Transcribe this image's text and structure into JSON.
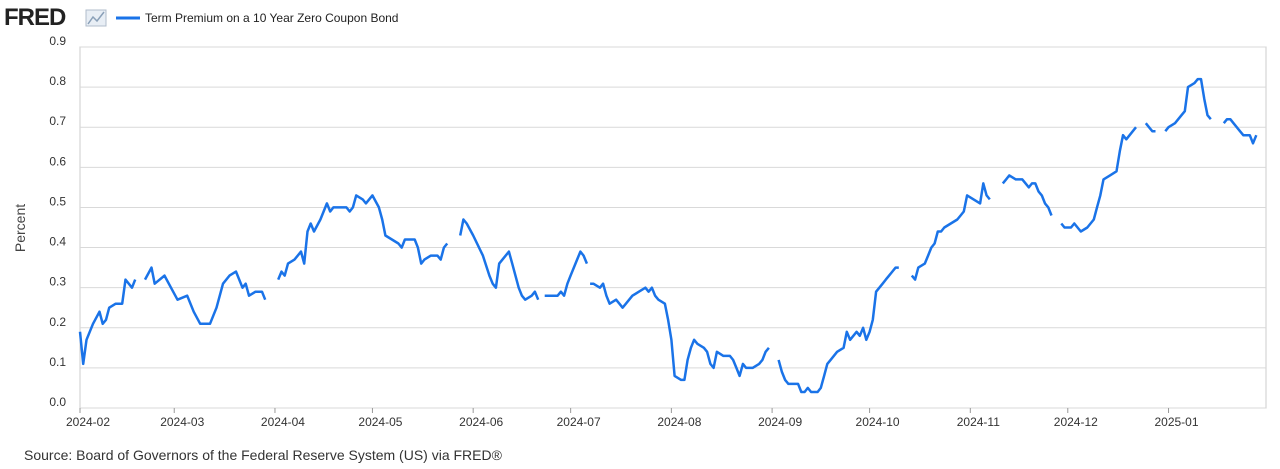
{
  "chart_data": {
    "type": "line",
    "logo": "FRED",
    "ylabel": "Percent",
    "source": "Source: Board of Governors of the Federal Reserve System (US) via FRED®",
    "series": [
      {
        "name": "Term Premium on a 10 Year Zero Coupon Bond",
        "color": "#1a73e8",
        "x": [
          0,
          1,
          2,
          4,
          6,
          7,
          8,
          9,
          11,
          13,
          14,
          16,
          17,
          18,
          20,
          22,
          23,
          26,
          28,
          30,
          33,
          35,
          37,
          40,
          42,
          44,
          46,
          48,
          50,
          51,
          52,
          54,
          56,
          57,
          59,
          61,
          62,
          63,
          64,
          66,
          68,
          69,
          70,
          71,
          72,
          74,
          76,
          77,
          78,
          80,
          82,
          83,
          84,
          85,
          87,
          88,
          90,
          92,
          93,
          94,
          96,
          98,
          99,
          100,
          103,
          104,
          105,
          106,
          108,
          110,
          111,
          112,
          113,
          115,
          117,
          118,
          119,
          121,
          124,
          126,
          127,
          128,
          129,
          131,
          132,
          133,
          135,
          136,
          137,
          139,
          140,
          141,
          142,
          143,
          146,
          147,
          148,
          149,
          150,
          151,
          153,
          154,
          155,
          156,
          156.5,
          157,
          158,
          160,
          161,
          162,
          163,
          165,
          166,
          167,
          168,
          170,
          172,
          174,
          175,
          176,
          177,
          178,
          180,
          181,
          182,
          183,
          185,
          186,
          187,
          188,
          189,
          190,
          192,
          193,
          194,
          195,
          196,
          198,
          200,
          201,
          202,
          203,
          204,
          205,
          207,
          209,
          210,
          211,
          212,
          213,
          215,
          216,
          217,
          218,
          220,
          221,
          222,
          223,
          224,
          225,
          227,
          228,
          229,
          230,
          231,
          233,
          235,
          236,
          237,
          239,
          240,
          241,
          242,
          243,
          244,
          245,
          247,
          248,
          249,
          250,
          251,
          252,
          254,
          256,
          257,
          258,
          260,
          261,
          262,
          263,
          264,
          265,
          266,
          268,
          270,
          271,
          272,
          273,
          275,
          277,
          278,
          279,
          280,
          282,
          284,
          285,
          286,
          288,
          290,
          291,
          292,
          293,
          294,
          295,
          296,
          297,
          298,
          299,
          300,
          302,
          303,
          305,
          306,
          308,
          310,
          312,
          313,
          314,
          315,
          317,
          319,
          320,
          321,
          322,
          324,
          325,
          326,
          328,
          329,
          330,
          331,
          332,
          334,
          335,
          337,
          339,
          340,
          341,
          343,
          344,
          345,
          346,
          347,
          348,
          350,
          352,
          353,
          354,
          355,
          357,
          358,
          359,
          360,
          361,
          362
        ],
        "values": [
          0.19,
          0.11,
          0.17,
          0.21,
          0.24,
          0.21,
          0.22,
          0.25,
          0.26,
          0.26,
          0.32,
          0.3,
          0.32,
          null,
          0.32,
          0.35,
          0.31,
          0.33,
          0.3,
          0.27,
          0.28,
          0.24,
          0.21,
          0.21,
          0.25,
          0.31,
          0.33,
          0.34,
          0.3,
          0.31,
          0.28,
          0.29,
          0.29,
          0.27,
          null,
          0.32,
          0.34,
          0.33,
          0.36,
          0.37,
          0.39,
          0.36,
          0.44,
          0.46,
          0.44,
          0.47,
          0.51,
          0.49,
          0.5,
          0.5,
          0.5,
          0.49,
          0.5,
          0.53,
          0.52,
          0.51,
          0.53,
          0.5,
          0.47,
          0.43,
          0.42,
          0.41,
          0.4,
          0.42,
          0.42,
          0.4,
          0.36,
          0.37,
          0.38,
          0.38,
          0.37,
          0.4,
          0.41,
          null,
          0.43,
          0.47,
          0.46,
          0.43,
          0.38,
          0.33,
          0.31,
          0.3,
          0.36,
          0.38,
          0.39,
          0.36,
          0.3,
          0.28,
          0.27,
          0.28,
          0.29,
          0.27,
          null,
          0.28,
          0.28,
          0.28,
          0.29,
          0.28,
          0.31,
          0.33,
          0.37,
          0.39,
          0.38,
          0.36,
          null,
          0.31,
          0.31,
          0.3,
          0.31,
          0.28,
          0.26,
          0.27,
          0.26,
          0.25,
          0.26,
          0.28,
          0.29,
          0.3,
          0.29,
          0.3,
          0.28,
          0.27,
          0.26,
          0.22,
          0.17,
          0.08,
          0.07,
          0.07,
          0.12,
          0.15,
          0.17,
          0.16,
          0.15,
          0.14,
          0.11,
          0.1,
          0.14,
          0.13,
          0.13,
          0.12,
          0.1,
          0.08,
          0.11,
          0.1,
          0.1,
          0.11,
          0.12,
          0.14,
          0.15,
          null,
          0.12,
          0.09,
          0.07,
          0.06,
          0.06,
          0.06,
          0.04,
          0.04,
          0.05,
          0.04,
          0.04,
          0.05,
          0.08,
          0.11,
          0.12,
          0.14,
          0.15,
          0.19,
          0.17,
          0.19,
          0.18,
          0.2,
          0.17,
          0.19,
          0.22,
          0.29,
          0.31,
          0.32,
          0.33,
          0.34,
          0.35,
          0.35,
          null,
          0.33,
          0.32,
          0.35,
          0.36,
          0.38,
          0.4,
          0.41,
          0.44,
          0.44,
          0.45,
          0.46,
          0.47,
          0.48,
          0.49,
          0.53,
          0.52,
          0.51,
          0.56,
          0.53,
          0.52,
          null,
          0.56,
          0.57,
          0.58,
          0.57,
          0.57,
          0.56,
          0.55,
          0.56,
          0.56,
          0.54,
          0.53,
          0.51,
          0.5,
          0.48,
          null,
          0.46,
          0.45,
          0.45,
          0.46,
          0.44,
          0.45,
          0.47,
          0.5,
          0.53,
          0.57,
          0.58,
          0.59,
          0.64,
          0.68,
          0.67,
          0.69,
          0.7,
          null,
          0.71,
          0.7,
          0.69,
          0.69,
          null,
          0.69,
          0.7,
          0.71,
          0.73,
          0.74,
          0.8,
          0.81,
          0.82,
          0.82,
          0.77,
          0.73,
          0.72,
          null,
          0.71,
          0.72,
          0.72,
          0.71,
          0.69,
          0.68,
          0.68,
          0.68,
          0.66,
          0.68
        ]
      }
    ],
    "xlim": [
      0,
      365
    ],
    "xticks": [
      {
        "value": 0,
        "label": "2024-02"
      },
      {
        "value": 29,
        "label": "2024-03"
      },
      {
        "value": 60,
        "label": "2024-04"
      },
      {
        "value": 90,
        "label": "2024-05"
      },
      {
        "value": 121,
        "label": "2024-06"
      },
      {
        "value": 151,
        "label": "2024-07"
      },
      {
        "value": 182,
        "label": "2024-08"
      },
      {
        "value": 213,
        "label": "2024-09"
      },
      {
        "value": 243,
        "label": "2024-10"
      },
      {
        "value": 274,
        "label": "2024-11"
      },
      {
        "value": 304,
        "label": "2024-12"
      },
      {
        "value": 335,
        "label": "2025-01"
      }
    ],
    "ylim": [
      0,
      0.9
    ],
    "yticks": [
      {
        "value": 0,
        "label": "0.0"
      },
      0.1,
      0.2,
      0.3,
      0.4,
      0.5,
      0.6,
      0.7,
      0.8,
      0.9
    ],
    "grid": true
  }
}
